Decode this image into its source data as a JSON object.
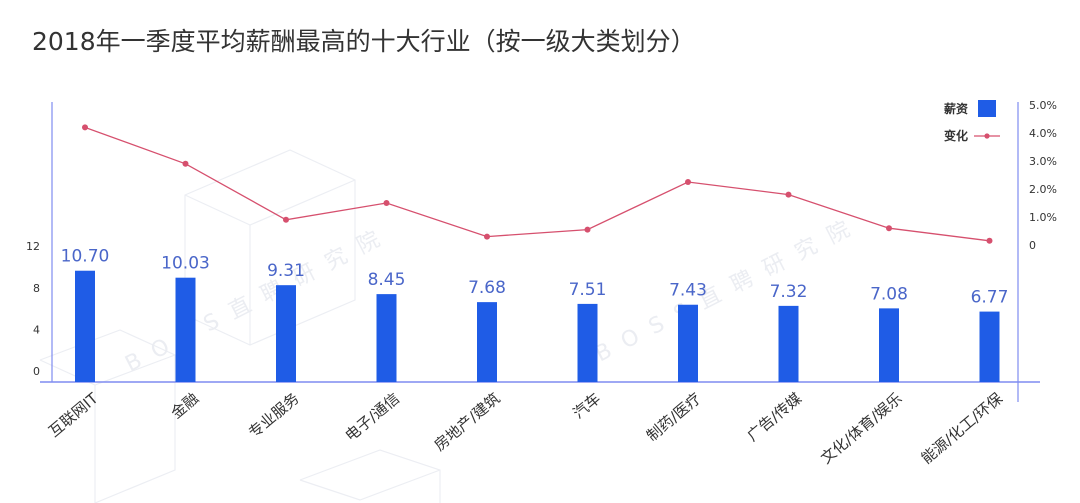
{
  "chart_data": {
    "type": "bar",
    "title": "2018年一季度平均薪酬最高的十大行业（按一级大类划分）",
    "categories": [
      "互联网IT",
      "金融",
      "专业服务",
      "电子/通信",
      "房地产/建筑",
      "汽车",
      "制药/医疗",
      "广告/传媒",
      "文化/体育/娱乐",
      "能源/化工/环保"
    ],
    "series": [
      {
        "name": "薪资",
        "type": "bar",
        "axis": "left",
        "values": [
          10.7,
          10.03,
          9.31,
          8.45,
          7.68,
          7.51,
          7.43,
          7.32,
          7.08,
          6.77
        ],
        "labels": [
          "10.70",
          "10.03",
          "9.31",
          "8.45",
          "7.68",
          "7.51",
          "7.43",
          "7.32",
          "7.08",
          "6.77"
        ]
      },
      {
        "name": "变化",
        "type": "line",
        "axis": "right",
        "values": [
          4.2,
          2.9,
          0.9,
          1.5,
          0.3,
          0.55,
          2.25,
          1.8,
          0.6,
          0.15
        ]
      }
    ],
    "y_left": {
      "ticks": [
        0,
        4,
        8,
        12
      ],
      "tick_labels": [
        "0",
        "4",
        "8",
        "12"
      ]
    },
    "y_right": {
      "ticks": [
        0,
        1,
        2,
        3,
        4,
        5
      ],
      "tick_labels": [
        "0",
        "1.0%",
        "2.0%",
        "3.0%",
        "4.0%",
        "5.0%"
      ]
    },
    "legend_position": "top-right",
    "colors": {
      "bar": "#1f5ce6",
      "line": "#d6506e",
      "axis": "#7f8cf0",
      "label": "#4a66c9",
      "text": "#333333"
    },
    "watermark": "BOSS直聘研究院"
  }
}
